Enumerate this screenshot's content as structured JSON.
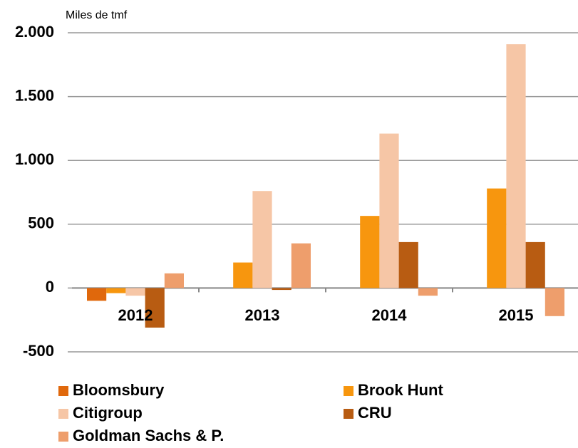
{
  "chart_data": {
    "type": "bar",
    "y_axis_label": "Miles de tmf",
    "categories": [
      "2012",
      "2013",
      "2014",
      "2015"
    ],
    "series": [
      {
        "name": "Bloomsbury",
        "color": "#e0680c",
        "values": [
          -100,
          0,
          0,
          0
        ]
      },
      {
        "name": "Brook Hunt",
        "color": "#f7960e",
        "values": [
          -40,
          200,
          565,
          780
        ]
      },
      {
        "name": "Citigroup",
        "color": "#f6c6a6",
        "values": [
          -60,
          760,
          1210,
          1910
        ]
      },
      {
        "name": "CRU",
        "color": "#b85c12",
        "values": [
          -310,
          -15,
          360,
          360
        ]
      },
      {
        "name": "Goldman Sachs & P.",
        "color": "#ee9e6c",
        "values": [
          115,
          350,
          -60,
          -220
        ]
      }
    ],
    "ylim": [
      -500,
      2000
    ],
    "yticks": [
      -500,
      0,
      500,
      {
        "value": 1000,
        "label": "1.000"
      },
      {
        "value": 1500,
        "label": "1.500"
      },
      {
        "value": 2000,
        "label": "2.000"
      }
    ],
    "grid": true,
    "legend": "bottom"
  }
}
